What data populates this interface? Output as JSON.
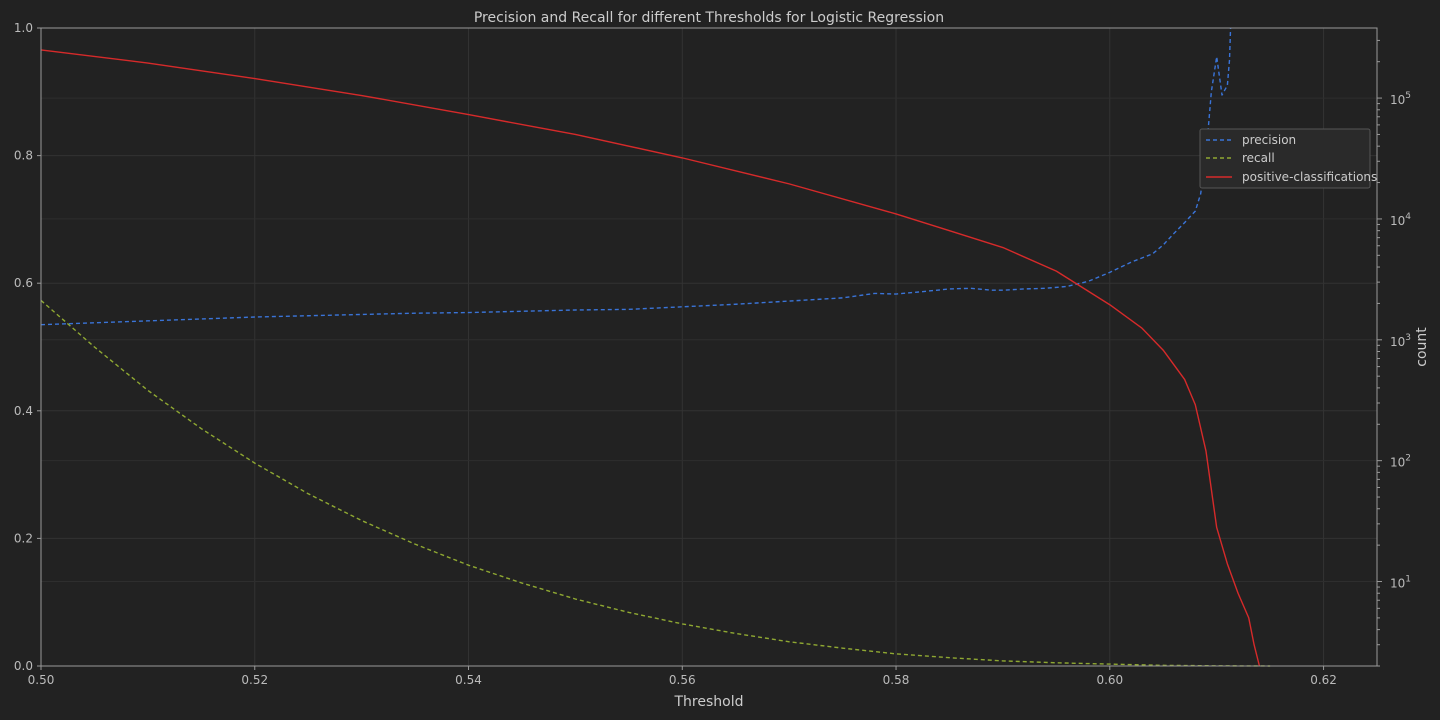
{
  "chart_data": {
    "type": "line",
    "title": "Precision and Recall for different Thresholds for Logistic Regression",
    "xlabel": "Threshold",
    "ylabel": "",
    "y2label": "count",
    "xlim": [
      0.5,
      0.625
    ],
    "ylim": [
      0.0,
      1.0
    ],
    "y2lim": [
      2,
      380000
    ],
    "y2scale": "log",
    "grid": true,
    "legend_position": "upper-right",
    "x_ticks": [
      "0.50",
      "0.52",
      "0.54",
      "0.56",
      "0.58",
      "0.60",
      "0.62"
    ],
    "y_ticks": [
      "0.0",
      "0.2",
      "0.4",
      "0.6",
      "0.8",
      "1.0"
    ],
    "y2_ticks": [
      "10",
      "10",
      "10",
      "10",
      "10"
    ],
    "y2_tick_exponents": [
      "1",
      "2",
      "3",
      "4",
      "5"
    ],
    "series": [
      {
        "name": "precision",
        "axis": "left",
        "style": "dashed",
        "color": "#3a74d8",
        "x": [
          0.5,
          0.505,
          0.51,
          0.515,
          0.52,
          0.525,
          0.53,
          0.535,
          0.54,
          0.545,
          0.55,
          0.555,
          0.56,
          0.565,
          0.57,
          0.575,
          0.578,
          0.58,
          0.582,
          0.585,
          0.587,
          0.589,
          0.59,
          0.592,
          0.594,
          0.596,
          0.598,
          0.6,
          0.602,
          0.604,
          0.605,
          0.606,
          0.607,
          0.608,
          0.6085,
          0.609,
          0.6095,
          0.61,
          0.6105,
          0.611,
          0.6112,
          0.6113
        ],
        "y": [
          0.535,
          0.538,
          0.541,
          0.544,
          0.547,
          0.549,
          0.551,
          0.553,
          0.554,
          0.556,
          0.558,
          0.559,
          0.563,
          0.567,
          0.572,
          0.577,
          0.584,
          0.583,
          0.586,
          0.591,
          0.592,
          0.589,
          0.589,
          0.591,
          0.592,
          0.595,
          0.603,
          0.617,
          0.633,
          0.646,
          0.66,
          0.678,
          0.695,
          0.713,
          0.74,
          0.8,
          0.9,
          0.955,
          0.895,
          0.91,
          0.95,
          1.0
        ]
      },
      {
        "name": "recall",
        "axis": "left",
        "style": "dashed",
        "color": "#8fa832",
        "x": [
          0.5,
          0.505,
          0.51,
          0.515,
          0.52,
          0.525,
          0.53,
          0.535,
          0.54,
          0.545,
          0.55,
          0.555,
          0.56,
          0.565,
          0.57,
          0.575,
          0.58,
          0.585,
          0.59,
          0.595,
          0.6,
          0.605,
          0.61,
          0.615
        ],
        "y": [
          0.573,
          0.5,
          0.432,
          0.372,
          0.318,
          0.27,
          0.228,
          0.191,
          0.158,
          0.13,
          0.105,
          0.084,
          0.066,
          0.051,
          0.038,
          0.028,
          0.019,
          0.013,
          0.008,
          0.005,
          0.003,
          0.001,
          0.0003,
          0.0
        ]
      },
      {
        "name": "positive-classifications",
        "axis": "right",
        "style": "solid",
        "color": "#d62a2a",
        "x": [
          0.5,
          0.51,
          0.52,
          0.53,
          0.54,
          0.55,
          0.56,
          0.57,
          0.58,
          0.585,
          0.59,
          0.595,
          0.6,
          0.603,
          0.605,
          0.607,
          0.608,
          0.609,
          0.61,
          0.611,
          0.612,
          0.613,
          0.6135,
          0.614
        ],
        "y": [
          250000,
          195000,
          145000,
          105000,
          73000,
          50000,
          32000,
          19500,
          11000,
          8000,
          5800,
          3700,
          1950,
          1250,
          820,
          470,
          290,
          120,
          28,
          14,
          8,
          5,
          3,
          2
        ]
      }
    ]
  }
}
